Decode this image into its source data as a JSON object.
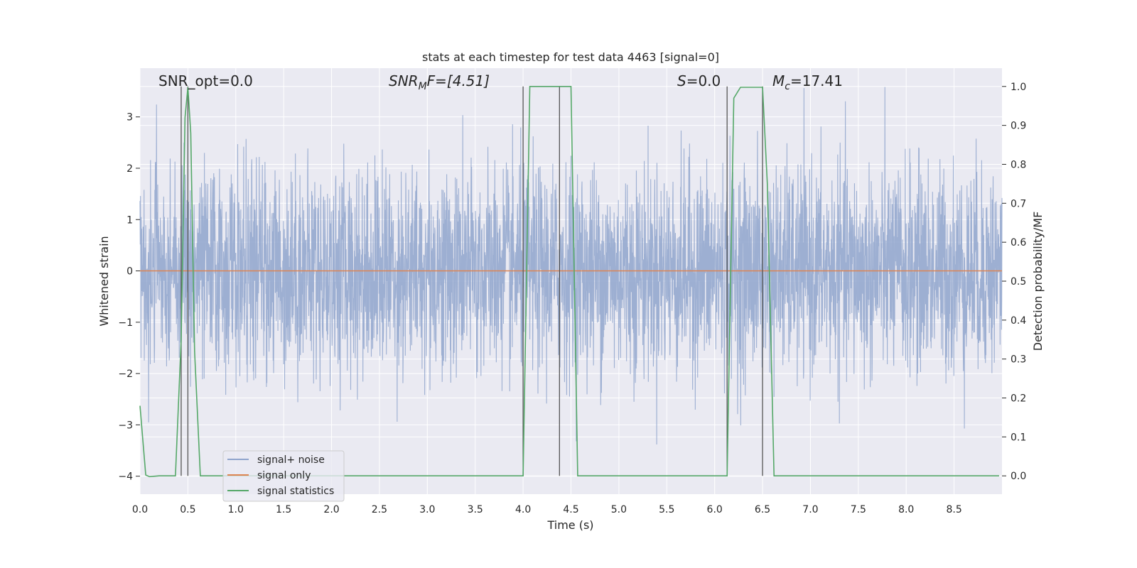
{
  "chart_data": {
    "type": "line",
    "title": "stats at each timestep for test data 4463 [signal=0]",
    "xlabel": "Time (s)",
    "ylabel": "Whitened strain",
    "ylabel_right": "Detection probability/MF",
    "xlim": [
      0.0,
      9.0
    ],
    "ylim": [
      -4.35,
      3.95
    ],
    "ylim_right": [
      -0.047,
      1.047
    ],
    "x_ticks": [
      0.0,
      0.5,
      1.0,
      1.5,
      2.0,
      2.5,
      3.0,
      3.5,
      4.0,
      4.5,
      5.0,
      5.5,
      6.0,
      6.5,
      7.0,
      7.5,
      8.0,
      8.5
    ],
    "x_tick_labels": [
      "0.0",
      "0.5",
      "1.0",
      "1.5",
      "2.0",
      "2.5",
      "3.0",
      "3.5",
      "4.0",
      "4.5",
      "5.0",
      "5.5",
      "6.0",
      "6.5",
      "7.0",
      "7.5",
      "8.0",
      "8.5"
    ],
    "y_ticks": [
      3,
      2,
      1,
      0,
      -1,
      -2,
      -3,
      -4
    ],
    "y_tick_labels": [
      "3",
      "2",
      "1",
      "0",
      "−1",
      "−2",
      "−3",
      "−4"
    ],
    "y_ticks_right": [
      1.0,
      0.9,
      0.8,
      0.7,
      0.6,
      0.5,
      0.4,
      0.3,
      0.2,
      0.1,
      0.0
    ],
    "y_tick_labels_right": [
      "1.0",
      "0.9",
      "0.8",
      "0.7",
      "0.6",
      "0.5",
      "0.4",
      "0.3",
      "0.2",
      "0.1",
      "0.0"
    ],
    "grid": true,
    "legend_position": "lower-left",
    "annotations": {
      "snr_opt": "SNR_opt=0.0",
      "snr_mf_base": "SNR",
      "snr_mf_sub": "M",
      "snr_mf_rest": "F=[4.51]",
      "s_base": "S",
      "s_rest": "=0.0",
      "mc_base": "M",
      "mc_sub": "c",
      "mc_rest": "=17.41"
    },
    "series": [
      {
        "name": "signal+ noise",
        "color": "#8fa4cc",
        "kind": "noise",
        "sigma": 1.0,
        "duration": 9.0
      },
      {
        "name": "signal only",
        "color": "#dd8452",
        "x": [
          0.0,
          9.0
        ],
        "y": [
          0.0,
          0.0
        ]
      },
      {
        "name": "signal statistics",
        "color": "#55a868",
        "axis": "right",
        "x": [
          0.0,
          0.06,
          0.1,
          0.2,
          0.3,
          0.37,
          0.43,
          0.47,
          0.5,
          0.53,
          0.57,
          0.63,
          0.7,
          1.5,
          2.5,
          3.5,
          4.0,
          4.07,
          4.2,
          4.4,
          4.5,
          4.57,
          5.0,
          5.5,
          6.13,
          6.2,
          6.27,
          6.4,
          6.5,
          6.55,
          6.62,
          6.7,
          7.5,
          8.5,
          8.97
        ],
        "y": [
          0.18,
          0.002,
          -0.002,
          0.0,
          0.0,
          0.0,
          0.35,
          0.92,
          0.998,
          0.88,
          0.32,
          0.0,
          0.0,
          0.0,
          0.0,
          0.0,
          0.0,
          1.0,
          1.0,
          1.0,
          1.0,
          0.0,
          0.0,
          0.0,
          0.0,
          0.97,
          0.998,
          0.998,
          0.998,
          0.75,
          0.0,
          0.0,
          0.0,
          0.0,
          0.0
        ]
      }
    ],
    "vlines": [
      0.43,
      0.5,
      4.0,
      4.38,
      6.13,
      6.5
    ]
  }
}
